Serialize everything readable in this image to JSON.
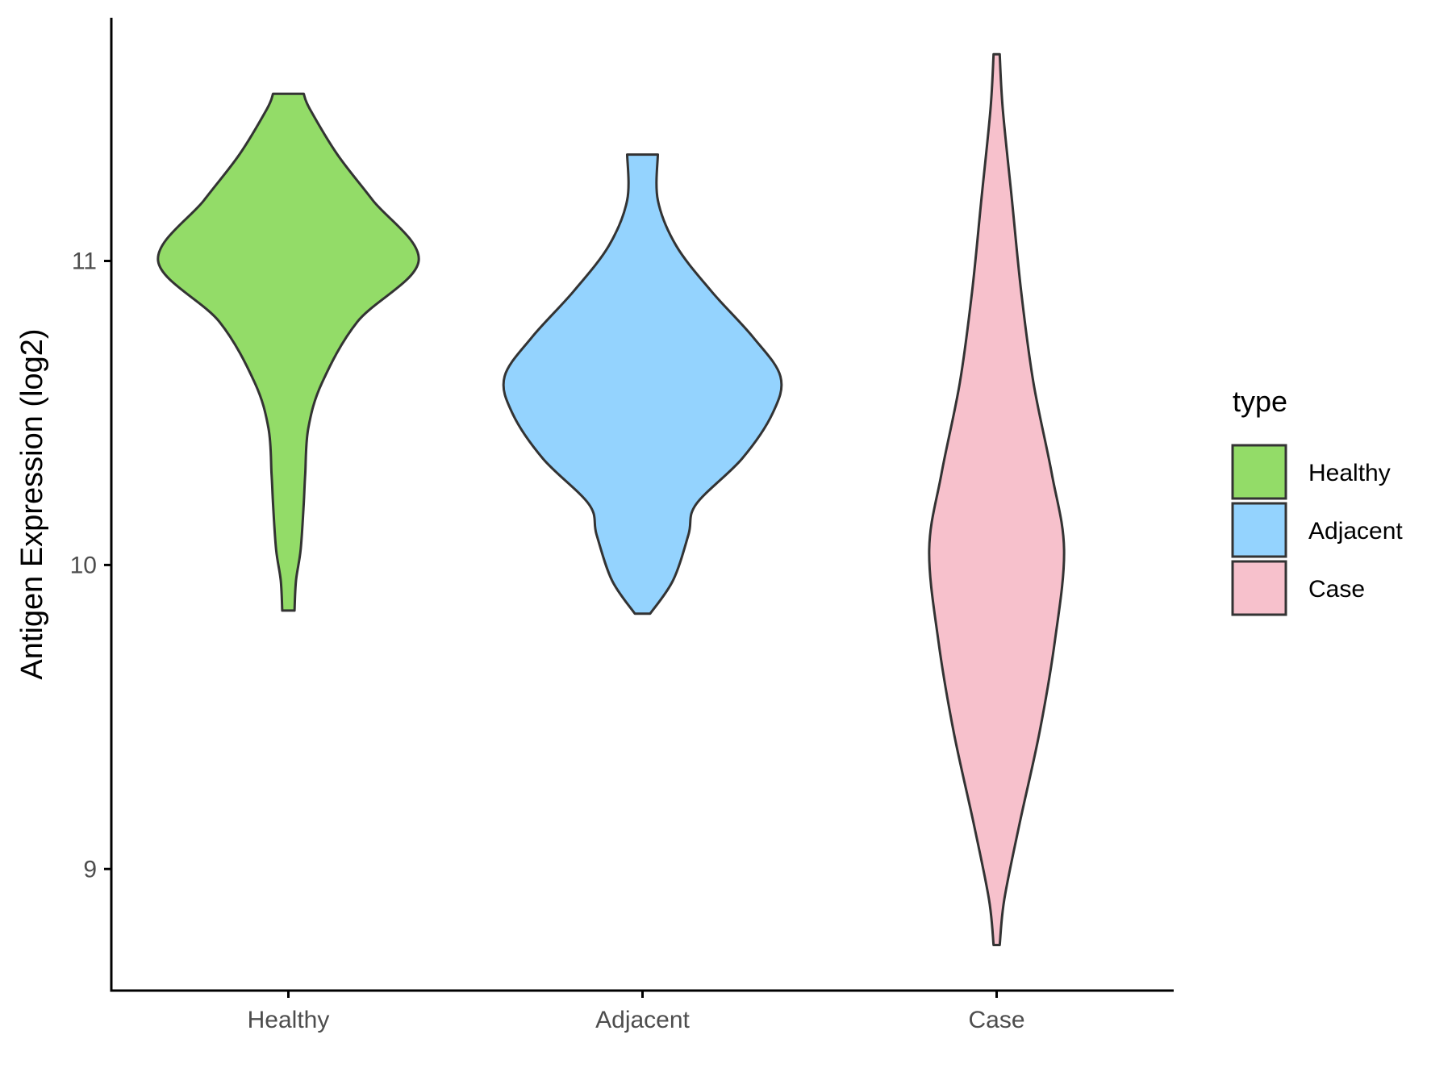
{
  "chart_data": {
    "type": "violin",
    "title": "",
    "xlabel": "",
    "ylabel": "Antigen Expression (log2)",
    "ylim": [
      8.6,
      11.8
    ],
    "y_ticks": [
      "9",
      "10",
      "11"
    ],
    "grid": false,
    "categories": [
      "Healthy",
      "Adjacent",
      "Case"
    ],
    "colors": {
      "Healthy": "#93dc68",
      "Adjacent": "#94d3fe",
      "Case": "#f7c1cc",
      "outline": "#333333"
    },
    "legend": {
      "title": "type",
      "placement": "right",
      "entries": [
        "Healthy",
        "Adjacent",
        "Case"
      ]
    },
    "series": [
      {
        "name": "Healthy",
        "min": 9.85,
        "max": 11.55,
        "density_profile": [
          [
            9.85,
            0.04
          ],
          [
            9.95,
            0.05
          ],
          [
            10.05,
            0.08
          ],
          [
            10.2,
            0.1
          ],
          [
            10.3,
            0.11
          ],
          [
            10.45,
            0.13
          ],
          [
            10.6,
            0.22
          ],
          [
            10.8,
            0.45
          ],
          [
            11.0,
            0.85
          ],
          [
            11.2,
            0.55
          ],
          [
            11.35,
            0.32
          ],
          [
            11.5,
            0.14
          ],
          [
            11.55,
            0.1
          ]
        ]
      },
      {
        "name": "Adjacent",
        "min": 9.84,
        "max": 11.35,
        "density_profile": [
          [
            9.84,
            0.05
          ],
          [
            9.95,
            0.2
          ],
          [
            10.1,
            0.3
          ],
          [
            10.2,
            0.35
          ],
          [
            10.35,
            0.65
          ],
          [
            10.5,
            0.85
          ],
          [
            10.62,
            0.9
          ],
          [
            10.75,
            0.72
          ],
          [
            10.9,
            0.45
          ],
          [
            11.05,
            0.22
          ],
          [
            11.2,
            0.1
          ],
          [
            11.35,
            0.1
          ]
        ]
      },
      {
        "name": "Case",
        "min": 8.75,
        "max": 11.68,
        "density_profile": [
          [
            8.75,
            0.02
          ],
          [
            8.9,
            0.05
          ],
          [
            9.15,
            0.15
          ],
          [
            9.45,
            0.28
          ],
          [
            9.75,
            0.38
          ],
          [
            10.05,
            0.44
          ],
          [
            10.3,
            0.36
          ],
          [
            10.6,
            0.24
          ],
          [
            10.9,
            0.16
          ],
          [
            11.2,
            0.1
          ],
          [
            11.5,
            0.04
          ],
          [
            11.68,
            0.02
          ]
        ]
      }
    ]
  }
}
